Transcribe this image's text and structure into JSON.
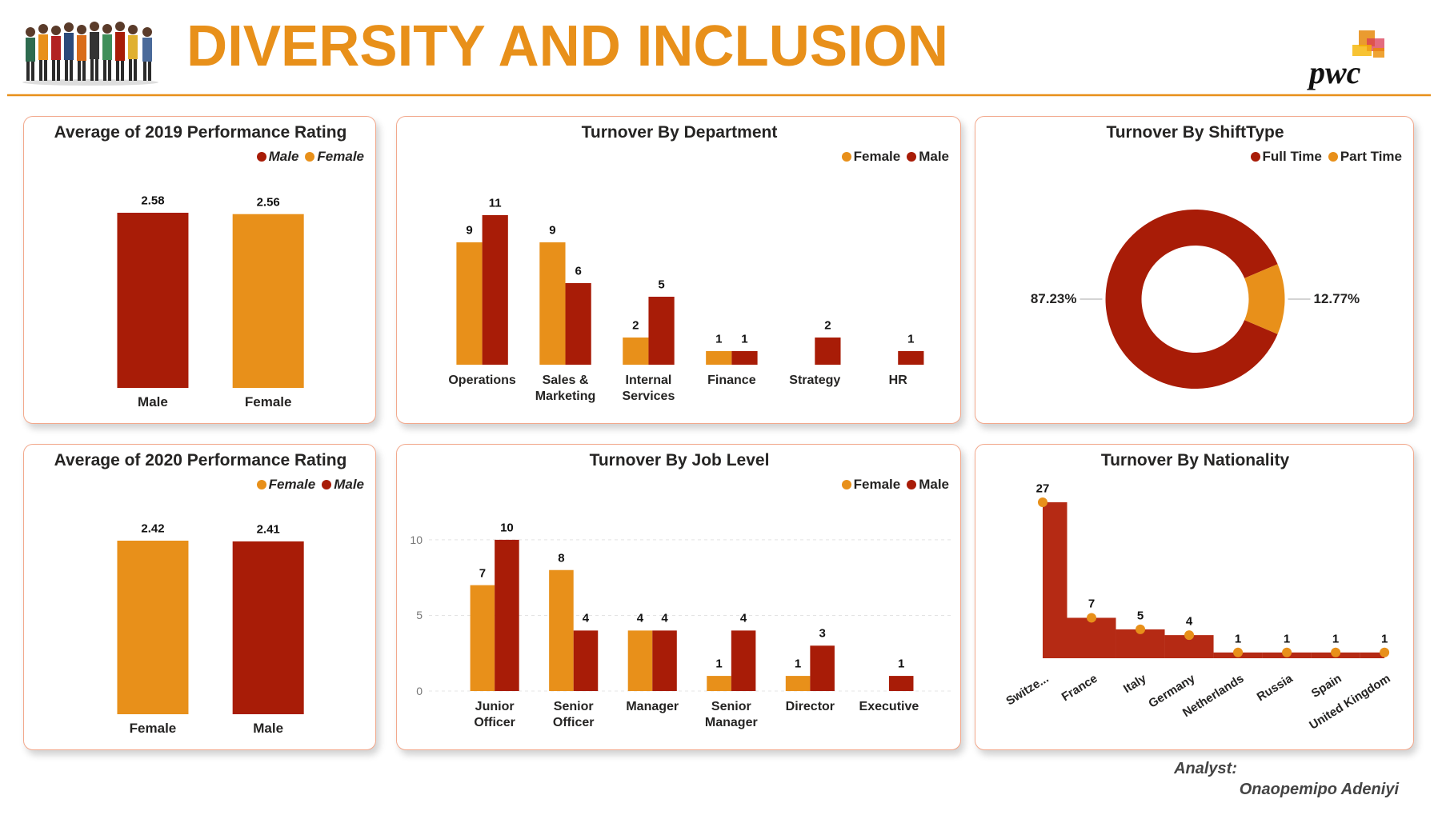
{
  "header": {
    "title": "DIVERSITY AND INCLUSION",
    "logo": "pwc"
  },
  "footer": {
    "label": "Analyst:",
    "name": "Onaopemipo Adeniyi"
  },
  "chart_data": [
    {
      "type": "bar",
      "title": "Average of 2019 Performance Rating",
      "categories": [
        "Male",
        "Female"
      ],
      "values": [
        2.58,
        2.56
      ],
      "colors": [
        "#a81c07",
        "#e8901a"
      ],
      "legend": "top-right"
    },
    {
      "type": "grouped_bar",
      "title": "Turnover By Department",
      "categories": [
        "Operations",
        "Sales & Marketing",
        "Internal Services",
        "Finance",
        "Strategy",
        "HR"
      ],
      "series": [
        {
          "name": "Female",
          "color": "#e8901a",
          "values": [
            9,
            9,
            2,
            1,
            null,
            null
          ]
        },
        {
          "name": "Male",
          "color": "#a81c07",
          "values": [
            11,
            6,
            5,
            1,
            2,
            1
          ]
        }
      ],
      "legend": "top-right"
    },
    {
      "type": "donut",
      "title": "Turnover By ShiftType",
      "categories": [
        "Full Time",
        "Part Time"
      ],
      "values": [
        87.23,
        12.77
      ],
      "value_labels": [
        "87.23%",
        "12.77%"
      ],
      "colors": [
        "#a81c07",
        "#e8901a"
      ],
      "legend": "top-right"
    },
    {
      "type": "bar",
      "title": "Average of 2020 Performance Rating",
      "categories": [
        "Female",
        "Male"
      ],
      "values": [
        2.42,
        2.41
      ],
      "colors": [
        "#e8901a",
        "#a81c07"
      ],
      "legend": "top-right"
    },
    {
      "type": "grouped_bar",
      "title": "Turnover By Job Level",
      "categories": [
        "Junior Officer",
        "Senior Officer",
        "Manager",
        "Senior Manager",
        "Director",
        "Executive"
      ],
      "series": [
        {
          "name": "Female",
          "color": "#e8901a",
          "values": [
            7,
            8,
            4,
            1,
            1,
            null
          ]
        },
        {
          "name": "Male",
          "color": "#a81c07",
          "values": [
            10,
            4,
            4,
            4,
            3,
            1
          ]
        }
      ],
      "ylim": [
        0,
        11
      ],
      "yticks": [
        0,
        5,
        10
      ],
      "grid": true,
      "legend": "top-right"
    },
    {
      "type": "step_area",
      "title": "Turnover By Nationality",
      "categories": [
        "Switze...",
        "France",
        "Italy",
        "Germany",
        "Netherlands",
        "Russia",
        "Spain",
        "United Kingdom"
      ],
      "values": [
        27,
        7,
        5,
        4,
        1,
        1,
        1,
        1
      ],
      "color": "#b52a14",
      "marker_color": "#e8901a"
    }
  ]
}
